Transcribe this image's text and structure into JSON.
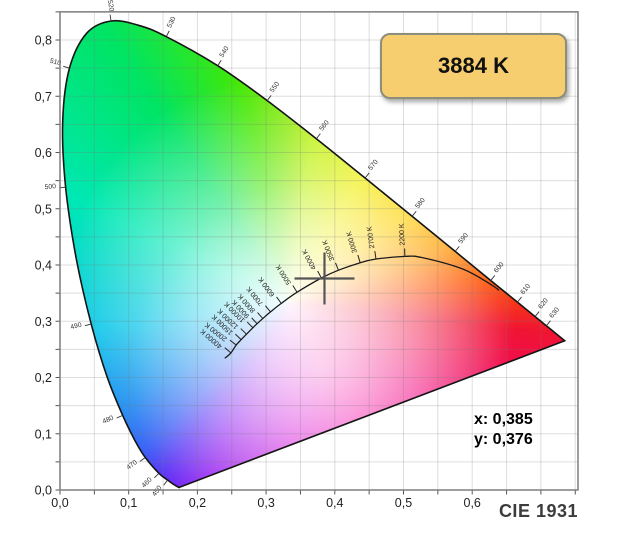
{
  "badge": {
    "label": "3884 K"
  },
  "readout": {
    "x": "x: 0,385",
    "y": "y: 0,376"
  },
  "footer": {
    "label": "CIE 1931"
  },
  "colors": {
    "badge_bg": "#f6ce6f",
    "badge_border": "#8d8d7b",
    "badge_text": "#111111",
    "crosshair": "#555555",
    "locus_outline": "#141414",
    "planck_curve": "#1b1b1b",
    "grid": "rgba(120,120,120,0.25)",
    "axis_tick": "#555555",
    "axis_text": "#222222",
    "small_label_text": "#333333",
    "footer_text": "#3c3c3c",
    "plot_border": "#7d7d7d",
    "gamut_conic_stops": [
      "#8ae800 0deg",
      "#b8f000 8deg",
      "#f0ee00 30deg",
      "#ffd000 53deg",
      "#ff9800 71deg",
      "#ff5000 84deg",
      "#f01434 97deg",
      "#f2007c 125deg",
      "#f500a6 150deg",
      "#d400d8 178deg",
      "#8a0cf0 205deg",
      "#5428f5 216deg",
      "#2a52f5 224deg",
      "#0a84f0 238deg",
      "#00c4e8 262deg",
      "#00e8b4 296deg",
      "#00e464 326deg",
      "#46e800 348deg",
      "#8ae800 360deg"
    ]
  },
  "chart_data": {
    "type": "scatter",
    "subtype": "cie-1931-xy-chromaticity-diagram",
    "title": "CIE 1931",
    "xlabel": "",
    "ylabel": "",
    "xlim": [
      0,
      0.754
    ],
    "ylim": [
      0,
      0.85
    ],
    "grid": true,
    "grid_step": 0.05,
    "decimal_separator": ",",
    "x_ticks": [
      {
        "v": 0.0,
        "label": "0,0"
      },
      {
        "v": 0.1,
        "label": "0,1"
      },
      {
        "v": 0.2,
        "label": "0,2"
      },
      {
        "v": 0.3,
        "label": "0,3"
      },
      {
        "v": 0.4,
        "label": "0,4"
      },
      {
        "v": 0.5,
        "label": "0,5"
      },
      {
        "v": 0.6,
        "label": "0,6"
      }
    ],
    "y_ticks": [
      {
        "v": 0.0,
        "label": "0,0"
      },
      {
        "v": 0.1,
        "label": "0,1"
      },
      {
        "v": 0.2,
        "label": "0,2"
      },
      {
        "v": 0.3,
        "label": "0,3"
      },
      {
        "v": 0.4,
        "label": "0,4"
      },
      {
        "v": 0.5,
        "label": "0,5"
      },
      {
        "v": 0.6,
        "label": "0,6"
      },
      {
        "v": 0.7,
        "label": "0,7"
      },
      {
        "v": 0.8,
        "label": "0,8"
      }
    ],
    "spectral_locus": [
      [
        380,
        0.1741,
        0.005
      ],
      [
        410,
        0.1726,
        0.0048
      ],
      [
        440,
        0.1644,
        0.0109
      ],
      [
        450,
        0.1566,
        0.0177
      ],
      [
        460,
        0.144,
        0.0297
      ],
      [
        470,
        0.1241,
        0.0578
      ],
      [
        475,
        0.1096,
        0.0868
      ],
      [
        480,
        0.0913,
        0.1327
      ],
      [
        485,
        0.0687,
        0.2007
      ],
      [
        490,
        0.0454,
        0.295
      ],
      [
        495,
        0.0235,
        0.4127
      ],
      [
        500,
        0.0082,
        0.5384
      ],
      [
        505,
        0.0039,
        0.6548
      ],
      [
        510,
        0.0139,
        0.7502
      ],
      [
        515,
        0.0389,
        0.812
      ],
      [
        520,
        0.0743,
        0.8338
      ],
      [
        525,
        0.1142,
        0.8262
      ],
      [
        530,
        0.1547,
        0.8059
      ],
      [
        540,
        0.2296,
        0.7543
      ],
      [
        550,
        0.3016,
        0.6923
      ],
      [
        560,
        0.3731,
        0.6245
      ],
      [
        570,
        0.4441,
        0.5547
      ],
      [
        580,
        0.5125,
        0.4866
      ],
      [
        590,
        0.5752,
        0.4242
      ],
      [
        600,
        0.627,
        0.3725
      ],
      [
        610,
        0.6658,
        0.334
      ],
      [
        620,
        0.6915,
        0.3083
      ],
      [
        630,
        0.7079,
        0.292
      ],
      [
        640,
        0.719,
        0.2809
      ],
      [
        700,
        0.7347,
        0.2653
      ]
    ],
    "wavelength_labels": [
      450,
      460,
      470,
      480,
      490,
      500,
      510,
      520,
      530,
      540,
      550,
      560,
      570,
      580,
      590,
      600,
      610,
      620,
      630
    ],
    "planckian_locus": [
      [
        100000,
        0.2399,
        0.2342
      ],
      [
        40000,
        0.2487,
        0.2438
      ],
      [
        20000,
        0.2565,
        0.2577
      ],
      [
        15000,
        0.2637,
        0.2673
      ],
      [
        12000,
        0.2714,
        0.277
      ],
      [
        10000,
        0.2807,
        0.2884
      ],
      [
        9000,
        0.2869,
        0.2956
      ],
      [
        8000,
        0.2952,
        0.3048
      ],
      [
        7000,
        0.3064,
        0.3166
      ],
      [
        6000,
        0.3221,
        0.3318
      ],
      [
        5000,
        0.3451,
        0.3516
      ],
      [
        4000,
        0.3805,
        0.3768
      ],
      [
        3500,
        0.4053,
        0.3907
      ],
      [
        3000,
        0.4369,
        0.4041
      ],
      [
        2700,
        0.4599,
        0.4106
      ],
      [
        2200,
        0.502,
        0.4152
      ],
      [
        2000,
        0.5267,
        0.4133
      ],
      [
        1500,
        0.5857,
        0.3931
      ],
      [
        1200,
        0.625,
        0.367
      ],
      [
        1100,
        0.639,
        0.355
      ]
    ],
    "temperature_labels": [
      {
        "t": 40000,
        "label": "40000 K"
      },
      {
        "t": 20000,
        "label": "20000 K"
      },
      {
        "t": 15000,
        "label": "15000 K"
      },
      {
        "t": 12000,
        "label": "12000 K"
      },
      {
        "t": 10000,
        "label": "10000 K"
      },
      {
        "t": 9000,
        "label": "9000 K"
      },
      {
        "t": 8000,
        "label": "8000 K"
      },
      {
        "t": 7000,
        "label": "7000 K"
      },
      {
        "t": 6000,
        "label": "6000 K"
      },
      {
        "t": 5000,
        "label": "5000 K"
      },
      {
        "t": 4000,
        "label": "4000 K"
      },
      {
        "t": 3500,
        "label": "3500 K"
      },
      {
        "t": 3000,
        "label": "3000 K"
      },
      {
        "t": 2700,
        "label": "2700 K"
      },
      {
        "t": 2200,
        "label": "2200 K"
      }
    ],
    "marker": {
      "x": 0.385,
      "y": 0.376,
      "cct_label": "3884 K",
      "x_display": "0,385",
      "y_display": "0,376"
    }
  }
}
